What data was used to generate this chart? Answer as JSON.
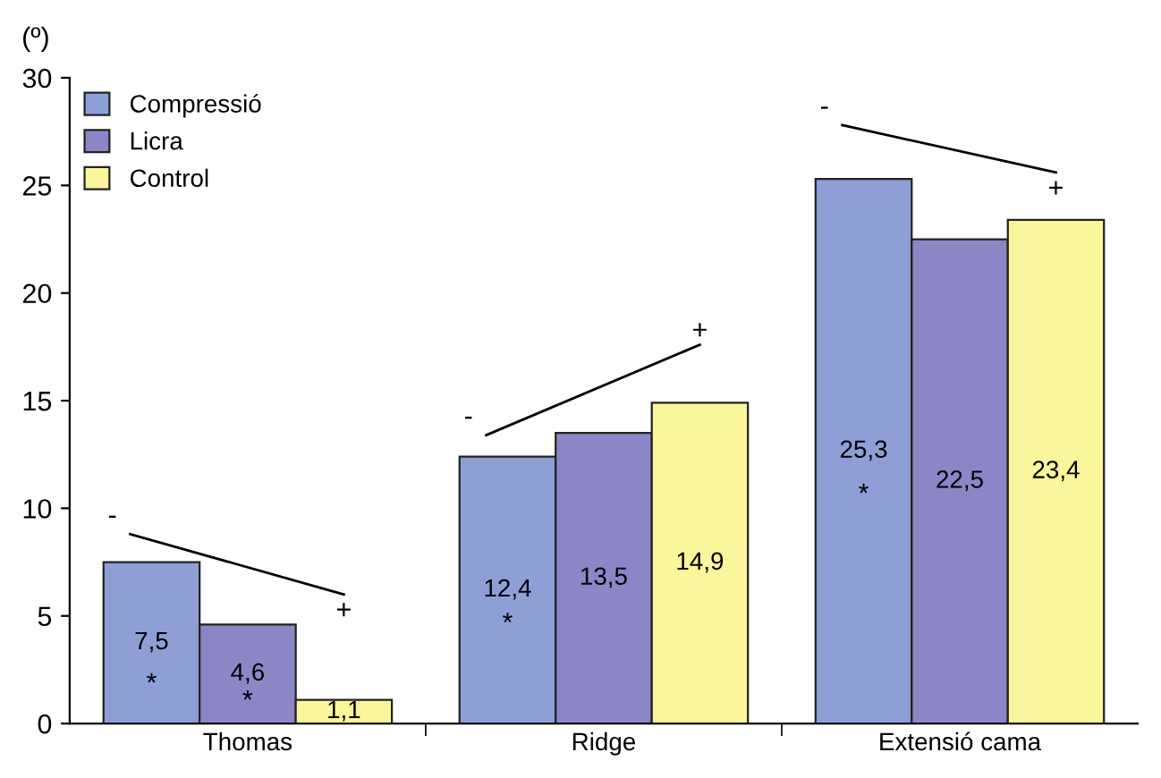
{
  "chart_data": {
    "type": "bar",
    "ylabel": "(º)",
    "categories": [
      "Thomas",
      "Ridge",
      "Extensió cama"
    ],
    "series": [
      {
        "name": "Compressió",
        "color": "#8e9fd6",
        "values": [
          7.5,
          12.4,
          25.3
        ],
        "value_labels": [
          "7,5",
          "12,4",
          "25,3"
        ]
      },
      {
        "name": "Licra",
        "color": "#8b87c6",
        "values": [
          4.6,
          13.5,
          22.5
        ],
        "value_labels": [
          "4,6",
          "13,5",
          "22,5"
        ]
      },
      {
        "name": "Control",
        "color": "#fbf59c",
        "values": [
          1.1,
          14.9,
          23.4
        ],
        "value_labels": [
          "1,1",
          "14,9",
          "23,4"
        ]
      }
    ],
    "ylim": [
      0,
      30
    ],
    "yticks": [
      0,
      5,
      10,
      15,
      20,
      25,
      30
    ],
    "grid": false,
    "legend": "top left",
    "annotations": [
      "-",
      "+",
      "*",
      "*",
      "-",
      "+",
      "*",
      "-",
      "+",
      "*"
    ]
  }
}
